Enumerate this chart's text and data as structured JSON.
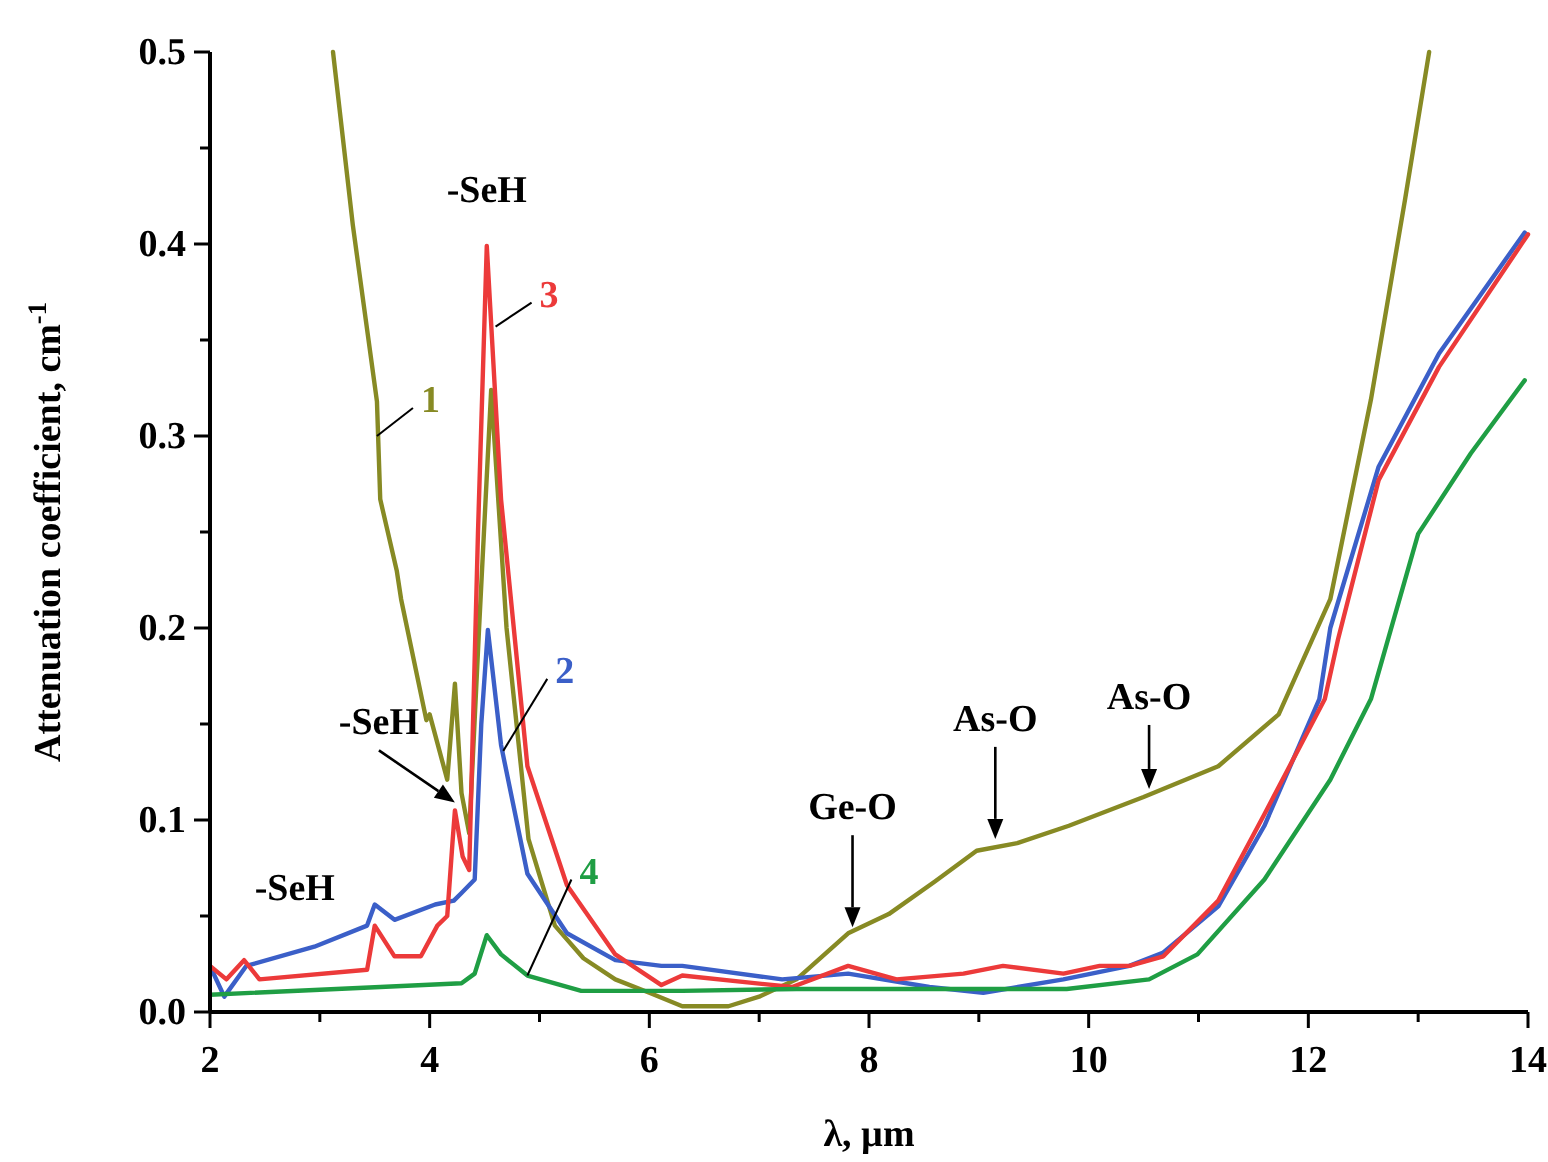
{
  "chart_data": {
    "type": "line",
    "xlabel": "λ, µm",
    "ylabel": "Attenuation coefficient, cm$^{-1}$",
    "xlim": [
      2,
      14
    ],
    "ylim": [
      0,
      0.5
    ],
    "xticks": [
      2,
      {
        "value": 3,
        "label": null
      },
      4,
      {
        "value": 5,
        "label": null
      },
      6,
      {
        "value": 7,
        "label": null
      },
      8,
      {
        "value": 9,
        "label": null
      },
      10,
      {
        "value": 11,
        "label": null
      },
      12,
      {
        "value": 13,
        "label": null
      },
      14
    ],
    "yticks": [
      {
        "value": 0,
        "label": "0.0"
      },
      {
        "value": 0.05,
        "label": null
      },
      0.1,
      {
        "value": 0.15,
        "label": null
      },
      0.2,
      {
        "value": 0.25,
        "label": null
      },
      0.3,
      {
        "value": 0.35,
        "label": null
      },
      0.4,
      {
        "value": 0.45,
        "label": null
      },
      0.5
    ],
    "grid": false,
    "marker": "none",
    "line_style": "solid",
    "series": [
      {
        "name": "1",
        "color": "#878a24",
        "x": [
          3.12,
          3.3,
          3.52,
          3.55,
          3.7,
          3.74,
          3.97,
          4.0,
          4.16,
          4.23,
          4.29,
          4.36,
          4.45,
          4.56,
          4.7,
          4.9,
          5.14,
          5.4,
          5.69,
          6.0,
          6.3,
          6.72,
          7.0,
          7.34,
          7.81,
          8.18,
          8.6,
          8.98,
          9.35,
          9.82,
          10.5,
          11.18,
          11.73,
          12.2,
          12.57,
          12.88,
          13.1
        ],
        "values": [
          0.5,
          0.41,
          0.318,
          0.267,
          0.23,
          0.215,
          0.152,
          0.155,
          0.121,
          0.171,
          0.114,
          0.093,
          0.2,
          0.324,
          0.2,
          0.09,
          0.045,
          0.028,
          0.017,
          0.01,
          0.003,
          0.003,
          0.008,
          0.017,
          0.041,
          0.051,
          0.068,
          0.084,
          0.088,
          0.097,
          0.112,
          0.128,
          0.155,
          0.215,
          0.319,
          0.423,
          0.5
        ]
      },
      {
        "name": "2",
        "color": "#3b5fc8",
        "x": [
          2.0,
          2.13,
          2.33,
          2.95,
          3.43,
          3.5,
          3.68,
          4.05,
          4.22,
          4.29,
          4.41,
          4.47,
          4.53,
          4.65,
          4.89,
          5.25,
          5.69,
          6.11,
          6.3,
          7.21,
          7.81,
          8.55,
          9.04,
          9.77,
          10.37,
          10.68,
          11.18,
          11.6,
          12.1,
          12.2,
          12.64,
          13.19,
          13.97
        ],
        "values": [
          0.024,
          0.008,
          0.024,
          0.034,
          0.045,
          0.056,
          0.048,
          0.056,
          0.058,
          0.062,
          0.069,
          0.15,
          0.199,
          0.139,
          0.072,
          0.041,
          0.027,
          0.024,
          0.024,
          0.017,
          0.02,
          0.013,
          0.01,
          0.017,
          0.024,
          0.031,
          0.055,
          0.097,
          0.163,
          0.2,
          0.284,
          0.343,
          0.406
        ]
      },
      {
        "name": "3",
        "color": "#ec3a3a",
        "x": [
          2.0,
          2.15,
          2.31,
          2.45,
          3.43,
          3.5,
          3.68,
          3.92,
          4.07,
          4.16,
          4.21,
          4.23,
          4.3,
          4.36,
          4.44,
          4.52,
          4.65,
          4.89,
          5.25,
          5.69,
          6.11,
          6.3,
          7.3,
          7.81,
          8.25,
          8.86,
          9.22,
          9.77,
          10.1,
          10.37,
          10.68,
          11.18,
          11.6,
          12.15,
          12.27,
          12.64,
          13.19,
          14.0
        ],
        "values": [
          0.024,
          0.017,
          0.027,
          0.017,
          0.022,
          0.045,
          0.029,
          0.029,
          0.045,
          0.05,
          0.09,
          0.105,
          0.081,
          0.074,
          0.25,
          0.399,
          0.267,
          0.128,
          0.066,
          0.03,
          0.014,
          0.019,
          0.013,
          0.024,
          0.017,
          0.02,
          0.024,
          0.02,
          0.024,
          0.024,
          0.029,
          0.058,
          0.103,
          0.163,
          0.194,
          0.277,
          0.336,
          0.405
        ]
      },
      {
        "name": "4",
        "color": "#1f9e44",
        "x": [
          2.0,
          3.55,
          4.29,
          4.41,
          4.52,
          4.65,
          4.89,
          5.38,
          6.3,
          7.34,
          9.8,
          10.55,
          10.99,
          11.6,
          12.2,
          12.57,
          13.0,
          13.48,
          13.97
        ],
        "values": [
          0.009,
          0.013,
          0.015,
          0.02,
          0.04,
          0.03,
          0.019,
          0.011,
          0.011,
          0.012,
          0.012,
          0.017,
          0.03,
          0.069,
          0.121,
          0.163,
          0.249,
          0.291,
          0.329
        ]
      }
    ],
    "annotations": [
      {
        "text": "-SeH",
        "x": 4.52,
        "y": 0.399
      },
      {
        "text": "-SeH",
        "x": 4.23,
        "y": 0.105
      },
      {
        "text": "-SeH",
        "x": 3.5,
        "y": 0.056
      },
      {
        "text": "Ge-O",
        "x": 7.85,
        "y": 0.04
      },
      {
        "text": "As-O",
        "x": 9.15,
        "y": 0.086
      },
      {
        "text": "As-O",
        "x": 10.55,
        "y": 0.112
      }
    ]
  }
}
